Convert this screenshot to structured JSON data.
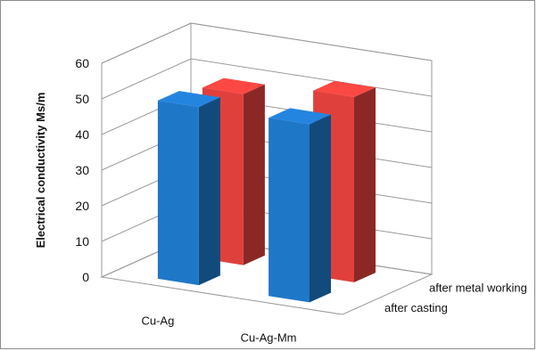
{
  "chart_data": {
    "type": "bar",
    "title": "",
    "xlabel": "",
    "ylabel": "Electrical conductivity Ms/m",
    "ylim": [
      0,
      60
    ],
    "yticks": [
      "0",
      "10",
      "20",
      "30",
      "40",
      "50",
      "60"
    ],
    "categories": [
      "Cu-Ag",
      "Cu-Ag-Mm"
    ],
    "depth_categories": [
      "after casting",
      "after metal working"
    ],
    "series": [
      {
        "name": "after casting",
        "values": [
          50,
          50
        ],
        "color": "#1f77c8"
      },
      {
        "name": "after metal working",
        "values": [
          48,
          52
        ],
        "color": "#e0403c"
      }
    ],
    "grid": true,
    "projection": "3d"
  }
}
